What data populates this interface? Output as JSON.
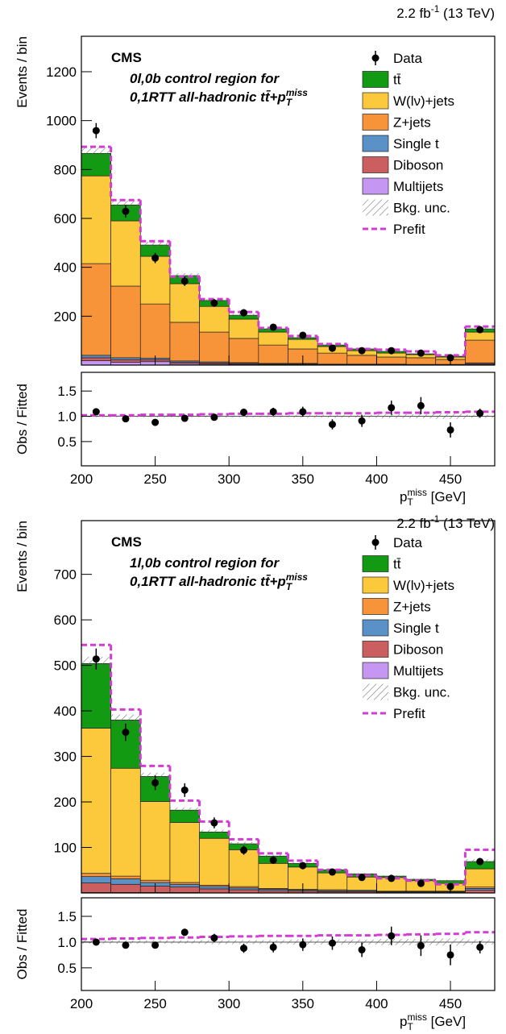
{
  "chart_data": [
    {
      "type": "stacked-histogram",
      "ylabel": "Events / bin",
      "lumi": {
        "text": "2.2 fb",
        "sup": "-1",
        "tail": " (13 TeV)"
      },
      "experiment": "CMS",
      "annotation": [
        "0l,0b control region for",
        {
          "text": "0,1RTT all-hadronic tt̄+p",
          "sup": "miss",
          "sub": "T"
        }
      ],
      "bins": [
        200,
        220,
        240,
        260,
        280,
        300,
        320,
        340,
        360,
        380,
        400,
        420,
        440,
        460,
        480
      ],
      "ylim": [
        0,
        1345
      ],
      "yticks": [
        200,
        400,
        600,
        800,
        1000,
        1200
      ],
      "series": [
        {
          "name": "tt̄",
          "color": "#139a13",
          "values": [
            92,
            65,
            46,
            33,
            24,
            16,
            13,
            7,
            6,
            7,
            7,
            3,
            3,
            13
          ]
        },
        {
          "name": "W(lν)+jets",
          "color": "#fdc93c",
          "values": [
            359,
            267,
            195,
            158,
            105,
            79,
            53,
            39,
            27,
            19,
            16,
            13,
            10,
            33
          ]
        },
        {
          "name": "Z+jets",
          "color": "#f7943a",
          "values": [
            375,
            293,
            222,
            158,
            122,
            99,
            75,
            59,
            45,
            36,
            29,
            27,
            20,
            93
          ]
        },
        {
          "name": "Single t",
          "color": "#5a92c8",
          "values": [
            10,
            8,
            6,
            5,
            4,
            3,
            2,
            2,
            1,
            1,
            1,
            1,
            1,
            3
          ]
        },
        {
          "name": "Diboson",
          "color": "#cb5f5f",
          "values": [
            12,
            10,
            8,
            6,
            5,
            4,
            3,
            3,
            2,
            2,
            2,
            1,
            1,
            4
          ]
        },
        {
          "name": "Multijets",
          "color": "#c597f2",
          "values": [
            18,
            12,
            14,
            6,
            4,
            3,
            2,
            2,
            1,
            1,
            1,
            1,
            1,
            2
          ]
        }
      ],
      "data": {
        "name": "Data",
        "color": "#000000",
        "values": [
          959,
          629,
          438,
          343,
          254,
          214,
          155,
          122,
          69,
          59,
          59,
          49,
          30,
          145
        ],
        "errors": [
          31,
          25,
          21,
          19,
          16,
          15,
          12,
          11,
          8,
          8,
          8,
          7,
          5,
          12
        ]
      },
      "bkg_unc": {
        "name": "Bkg. unc.",
        "values": [
          25,
          18,
          13,
          10,
          7,
          6,
          4,
          3,
          3,
          2,
          2,
          2,
          2,
          5
        ]
      },
      "prefit": {
        "name": "Prefit",
        "color": "#d13cd1",
        "values": [
          893,
          675,
          507,
          362,
          270,
          217,
          152,
          119,
          86,
          66,
          63,
          56,
          40,
          158
        ]
      }
    },
    {
      "type": "ratio",
      "ylabel": "Obs / Fitted",
      "xlabel": {
        "text": "p",
        "sup": "miss",
        "sub": "T",
        "tail": " [GeV]"
      },
      "bins": [
        200,
        220,
        240,
        260,
        280,
        300,
        320,
        340,
        360,
        380,
        400,
        420,
        440,
        460,
        480
      ],
      "xlim": [
        200,
        480
      ],
      "xticks": [
        200,
        250,
        300,
        350,
        400,
        450
      ],
      "ylim": [
        0.02,
        1.87
      ],
      "yticks": [
        0.5,
        {
          "value": 1,
          "label": "1.0"
        },
        1.5
      ],
      "data": {
        "values": [
          1.09,
          0.95,
          0.88,
          0.96,
          0.98,
          1.08,
          1.09,
          1.09,
          0.84,
          0.91,
          1.17,
          1.21,
          0.73,
          1.06
        ],
        "errors": [
          0.04,
          0.04,
          0.05,
          0.05,
          0.06,
          0.07,
          0.08,
          0.1,
          0.1,
          0.12,
          0.14,
          0.17,
          0.15,
          0.09
        ]
      },
      "unc": [
        0.02,
        0.02,
        0.02,
        0.02,
        0.02,
        0.02,
        0.02,
        0.03,
        0.03,
        0.03,
        0.04,
        0.04,
        0.05,
        0.03
      ],
      "prefit": [
        1.02,
        1.02,
        1.03,
        1.03,
        1.04,
        1.05,
        1.05,
        1.06,
        1.06,
        1.06,
        1.07,
        1.07,
        1.08,
        1.09
      ]
    },
    {
      "type": "stacked-histogram",
      "ylabel": "Events / bin",
      "lumi": {
        "text": "2.2 fb",
        "sup": "-1",
        "tail": " (13 TeV)"
      },
      "experiment": "CMS",
      "annotation": [
        "1l,0b control region for",
        {
          "text": "0,1RTT all-hadronic tt̄+p",
          "sup": "miss",
          "sub": "T"
        }
      ],
      "bins": [
        200,
        220,
        240,
        260,
        280,
        300,
        320,
        340,
        360,
        380,
        400,
        420,
        440,
        460,
        480
      ],
      "ylim": [
        0,
        818
      ],
      "yticks": [
        100,
        200,
        300,
        400,
        500,
        600,
        700
      ],
      "series": [
        {
          "name": "tt̄",
          "color": "#139a13",
          "values": [
            142,
            106,
            55,
            27,
            14,
            13,
            16,
            8,
            7,
            7,
            3,
            3,
            6,
            16
          ]
        },
        {
          "name": "W(lν)+jets",
          "color": "#fdc93c",
          "values": [
            319,
            237,
            173,
            132,
            103,
            81,
            55,
            49,
            37,
            29,
            30,
            23,
            17,
            40
          ]
        },
        {
          "name": "Z+jets",
          "color": "#f7943a",
          "values": [
            7,
            6,
            5,
            4,
            3,
            3,
            2,
            2,
            2,
            1,
            1,
            1,
            1,
            3
          ]
        },
        {
          "name": "Single t",
          "color": "#5a92c8",
          "values": [
            14,
            12,
            8,
            6,
            5,
            4,
            3,
            2,
            2,
            2,
            1,
            1,
            1,
            4
          ]
        },
        {
          "name": "Diboson",
          "color": "#cb5f5f",
          "values": [
            21,
            18,
            14,
            12,
            9,
            7,
            5,
            4,
            3,
            3,
            2,
            2,
            2,
            6
          ]
        },
        {
          "name": "Multijets",
          "color": "#c597f2",
          "values": [
            1,
            1,
            1,
            1,
            0,
            0,
            0,
            0,
            0,
            0,
            0,
            0,
            0,
            0
          ]
        }
      ],
      "data": {
        "name": "Data",
        "color": "#000000",
        "values": [
          514,
          353,
          242,
          226,
          154,
          94,
          72,
          60,
          46,
          34,
          32,
          21,
          14,
          69
        ],
        "errors": [
          23,
          19,
          16,
          15,
          12,
          10,
          8,
          8,
          7,
          6,
          6,
          5,
          4,
          8
        ]
      },
      "bkg_unc": {
        "name": "Bkg. unc.",
        "values": [
          15,
          12,
          8,
          6,
          5,
          4,
          3,
          3,
          2,
          2,
          2,
          2,
          2,
          5
        ]
      },
      "prefit": {
        "name": "Prefit",
        "color": "#d13cd1",
        "values": [
          545,
          403,
          279,
          203,
          157,
          118,
          87,
          71,
          51,
          39,
          32,
          27,
          19,
          95
        ]
      }
    },
    {
      "type": "ratio",
      "ylabel": "Obs / Fitted",
      "xlabel": {
        "text": "p",
        "sup": "miss",
        "sub": "T",
        "tail": " [GeV]"
      },
      "bins": [
        200,
        220,
        240,
        260,
        280,
        300,
        320,
        340,
        360,
        380,
        400,
        420,
        440,
        460,
        480
      ],
      "xlim": [
        200,
        480
      ],
      "xticks": [
        200,
        250,
        300,
        350,
        400,
        450
      ],
      "ylim": [
        0.06,
        1.86
      ],
      "yticks": [
        0.5,
        {
          "value": 1,
          "label": "1.0"
        },
        1.5
      ],
      "data": {
        "values": [
          1.0,
          0.94,
          0.94,
          1.19,
          1.08,
          0.88,
          0.9,
          0.95,
          0.98,
          0.85,
          1.12,
          0.93,
          0.75,
          0.9
        ],
        "errors": [
          0.05,
          0.05,
          0.06,
          0.07,
          0.08,
          0.09,
          0.1,
          0.12,
          0.13,
          0.14,
          0.18,
          0.2,
          0.2,
          0.12
        ]
      },
      "unc": [
        0.03,
        0.03,
        0.03,
        0.03,
        0.04,
        0.04,
        0.04,
        0.05,
        0.05,
        0.05,
        0.06,
        0.06,
        0.07,
        0.05
      ],
      "prefit": [
        1.06,
        1.07,
        1.08,
        1.09,
        1.1,
        1.11,
        1.12,
        1.12,
        1.13,
        1.13,
        1.14,
        1.15,
        1.16,
        1.19
      ]
    }
  ]
}
